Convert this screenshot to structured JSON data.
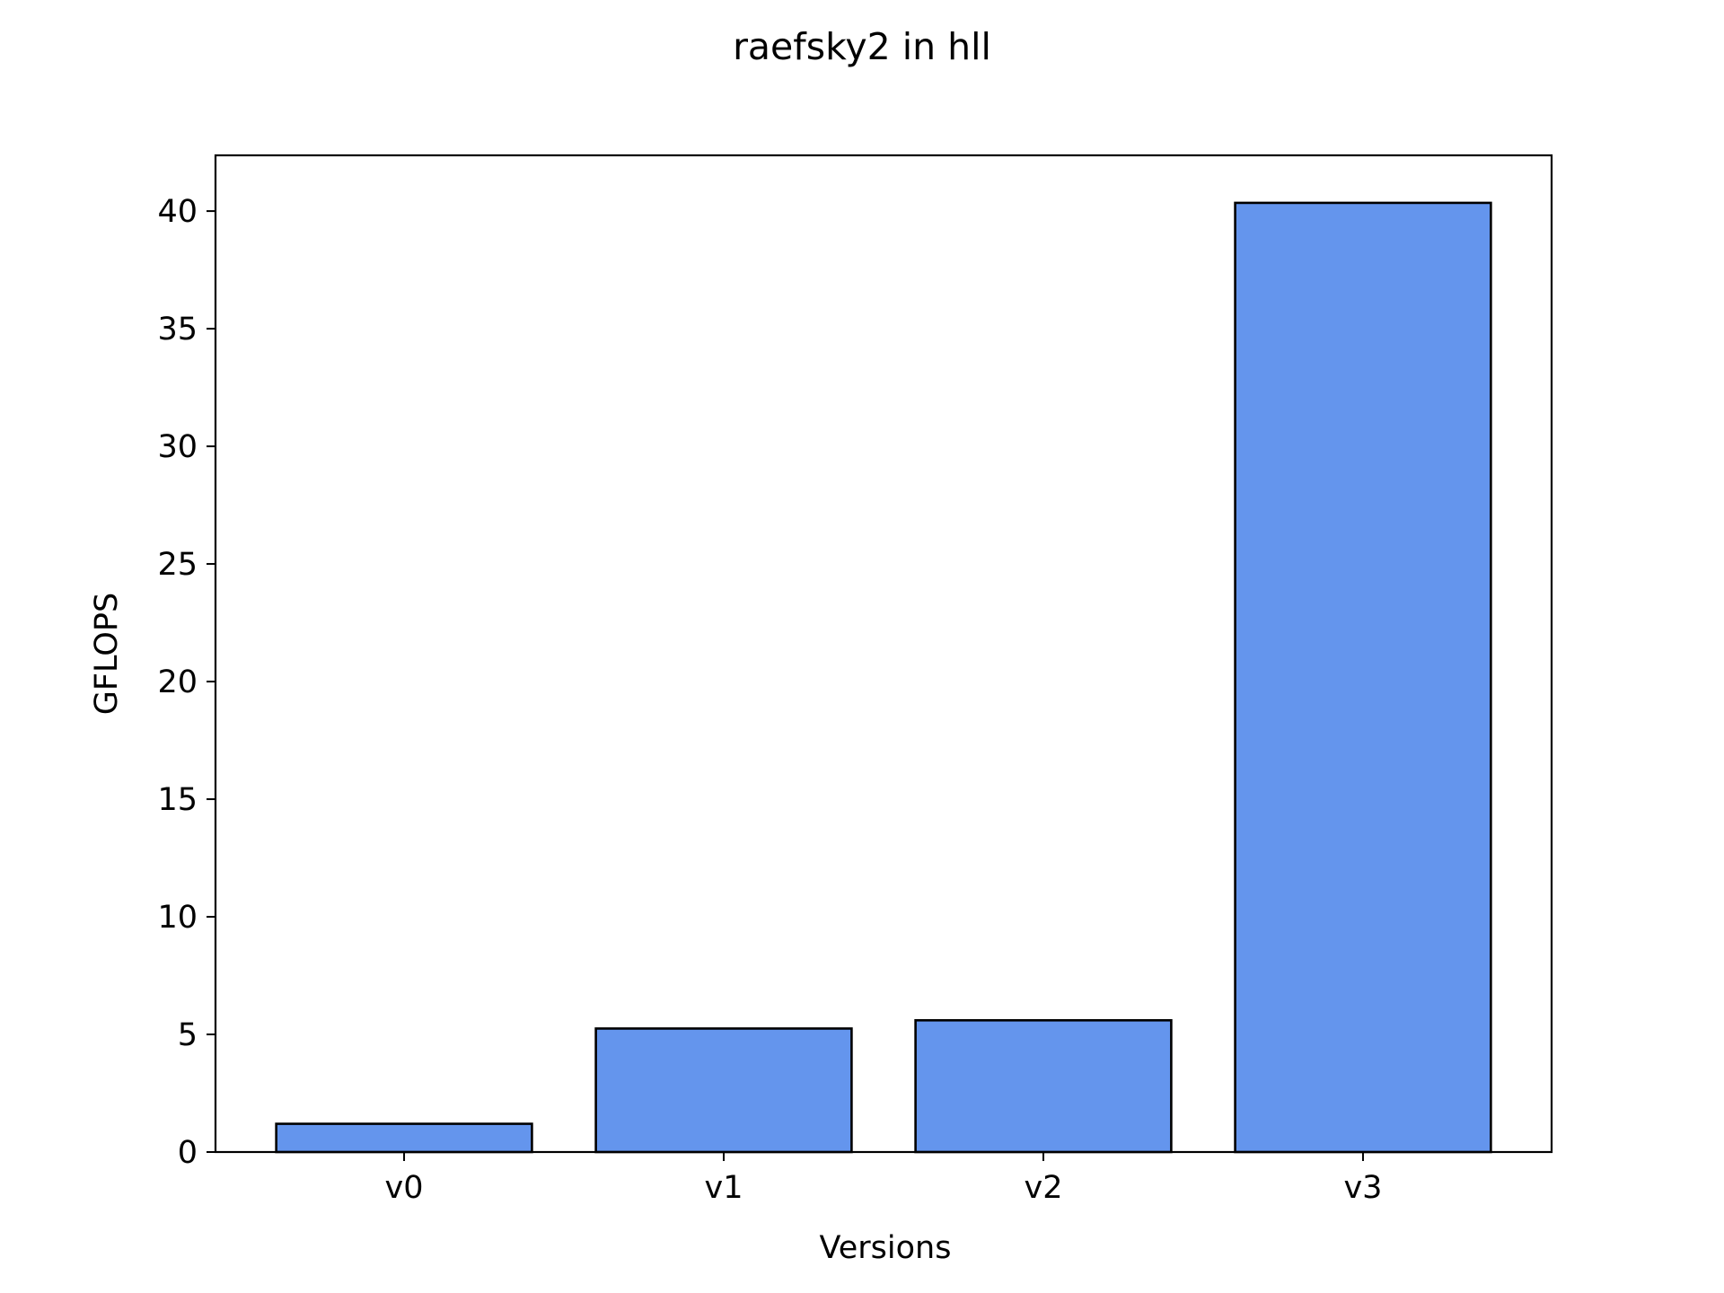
{
  "chart_data": {
    "type": "bar",
    "title": "raefsky2 in hll",
    "xlabel": "Versions",
    "ylabel": "GFLOPS",
    "categories": [
      "v0",
      "v1",
      "v2",
      "v3"
    ],
    "values": [
      1.2,
      5.25,
      5.6,
      40.35
    ],
    "ylim": [
      0,
      42.37
    ],
    "yticks": [
      0,
      5,
      10,
      15,
      20,
      25,
      30,
      35,
      40
    ],
    "bar_color": "#6495ED",
    "edge_color": "#000000",
    "grid": false,
    "legend": "none"
  }
}
